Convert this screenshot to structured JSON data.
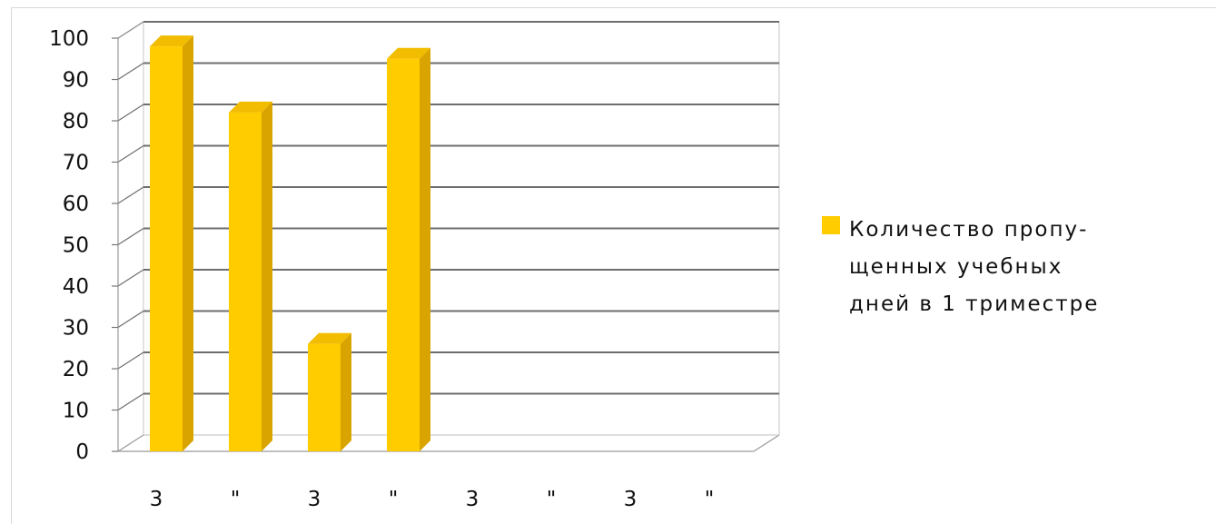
{
  "chart_data": {
    "type": "bar",
    "categories": [
      "3",
      "\"",
      "3",
      "\"",
      "3",
      "\"",
      "3",
      "\""
    ],
    "series": [
      {
        "name": "Количество пропу-щенных учебных дней в 1 триместре",
        "values": [
          98,
          82,
          26,
          95,
          null,
          null,
          null,
          null
        ]
      }
    ],
    "y_ticks": [
      "0",
      "10",
      "20",
      "30",
      "40",
      "50",
      "60",
      "70",
      "80",
      "90",
      "100"
    ],
    "ylim": [
      0,
      100
    ],
    "xlabel": "",
    "ylabel": "",
    "title": "",
    "grid": true,
    "legend_position": "right",
    "colors": {
      "bar_front": "#FFCC00",
      "bar_side": "#D9A300",
      "bar_top": "#F2BC00",
      "grid": "#6e6e6e",
      "wall": "#cfcfcf"
    }
  },
  "legend": {
    "line1": "Количество пропу-",
    "line2": "щенных учебных",
    "line3": "дней в 1 триместре"
  }
}
